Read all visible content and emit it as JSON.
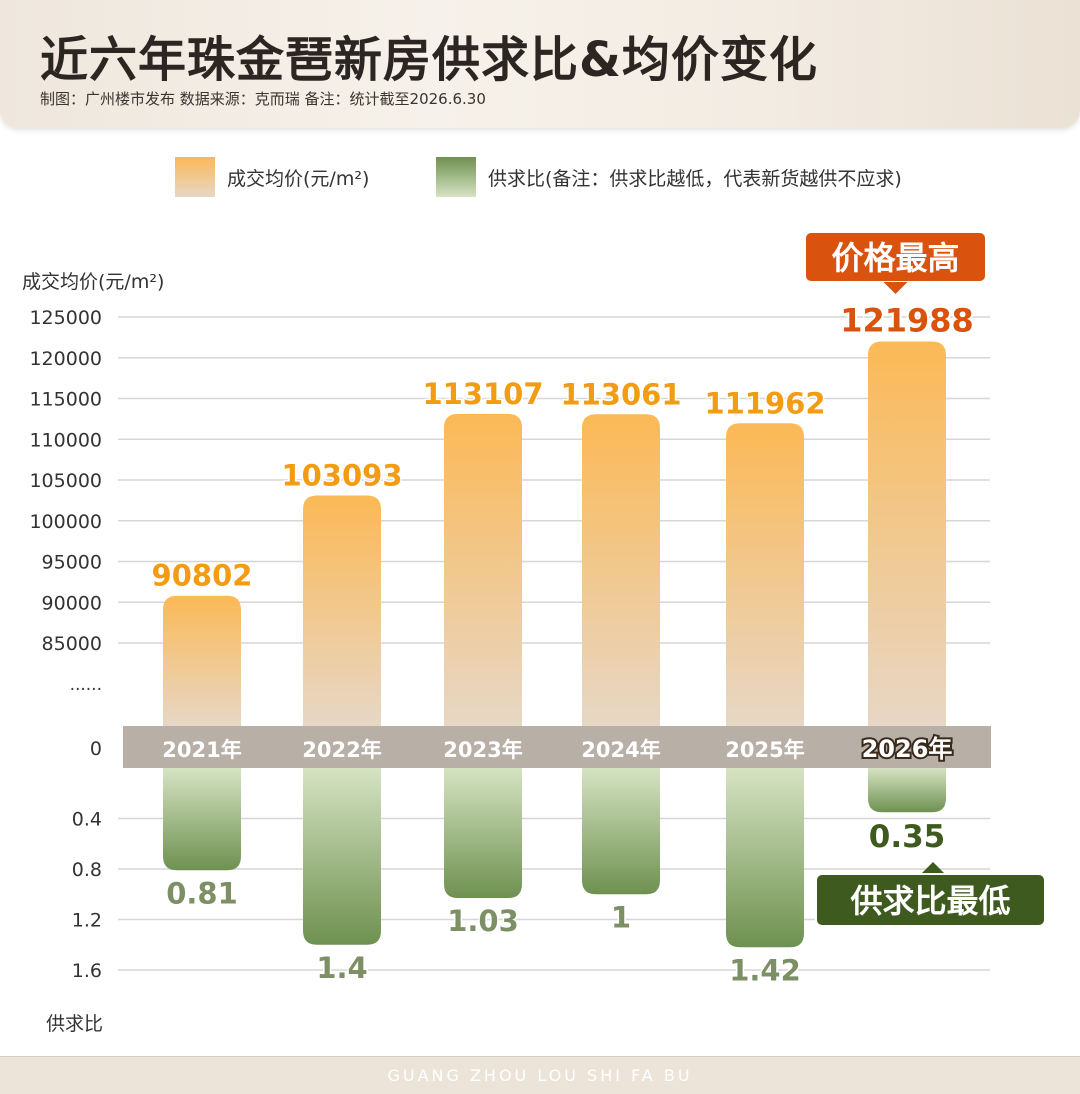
{
  "header": {
    "title": "近六年珠金琶新房供求比&均价变化",
    "subtitle": "制图：广州楼市发布   数据来源：克而瑞   备注：统计截至2026.6.30"
  },
  "legend": {
    "price": "成交均价(元/m²)",
    "ratio": "供求比(备注：供求比越低，代表新货越供不应求)"
  },
  "footer": "GUANG ZHOU LOU SHI FA BU",
  "colors": {
    "price_top": "#fbb956",
    "price_bottom": "#e7d7c6",
    "ratio_top": "#d6e3c3",
    "ratio_bottom": "#6e9150",
    "price_label": "#f39c12",
    "ratio_label": "#7d8f65",
    "callout_orange": "#d9530f",
    "callout_green": "#3e5a1f",
    "baseline": "#b8afa6"
  },
  "chart_data": {
    "type": "bar",
    "categories": [
      "2021年",
      "2022年",
      "2023年",
      "2024年",
      "2025年",
      "2026年"
    ],
    "series": [
      {
        "name": "成交均价(元/m²)",
        "values": [
          90802,
          103093,
          113107,
          113061,
          111962,
          121988
        ]
      },
      {
        "name": "供求比",
        "values": [
          0.81,
          1.4,
          1.03,
          1,
          1.42,
          0.35
        ]
      }
    ],
    "price_labels": [
      "90802",
      "103093",
      "113107",
      "113061",
      "111962",
      "121988"
    ],
    "ratio_labels": [
      "0.81",
      "1.4",
      "1.03",
      "1",
      "1.42",
      "0.35"
    ],
    "y_price": {
      "label": "成交均价(元/m²)",
      "ticks": [
        "125000",
        "120000",
        "115000",
        "110000",
        "105000",
        "100000",
        "95000",
        "90000",
        "85000",
        "......"
      ],
      "tick_values": [
        125000,
        120000,
        115000,
        110000,
        105000,
        100000,
        95000,
        90000,
        85000
      ]
    },
    "zero_tick": "0",
    "y_ratio": {
      "label": "供求比",
      "ticks": [
        "0.4",
        "0.8",
        "1.2",
        "1.6"
      ],
      "tick_values": [
        0.4,
        0.8,
        1.2,
        1.6
      ]
    },
    "annotations": {
      "max_price": "价格最高",
      "min_ratio": "供求比最低"
    },
    "highlight_index": 5,
    "grid": true
  }
}
